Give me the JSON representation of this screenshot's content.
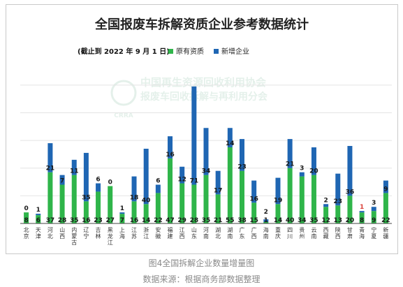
{
  "chart_data": {
    "type": "bar",
    "stacked": true,
    "title": "全国报废车拆解资质企业参考数据统计",
    "subtitle": "(截止到 2022 年 9 月 1 日)",
    "xlabel": "",
    "ylabel": "",
    "ylim": [
      0,
      110
    ],
    "grid": true,
    "legend_position": "top",
    "categories": [
      "北京",
      "天津",
      "河北",
      "山西",
      "内蒙古",
      "辽宁",
      "吉林",
      "黑龙江",
      "上海",
      "江苏",
      "浙江",
      "安徽",
      "福建",
      "江西",
      "山东",
      "河南",
      "湖北",
      "湖南",
      "广东",
      "广西",
      "海南",
      "重庆",
      "四川",
      "贵州",
      "云南",
      "西藏",
      "陕西",
      "甘肃",
      "青海",
      "宁夏",
      "新疆"
    ],
    "series": [
      {
        "name": "原有资质",
        "color": "#2fb54a",
        "values": [
          8,
          6,
          37,
          28,
          35,
          16,
          23,
          27,
          7,
          16,
          14,
          22,
          47,
          29,
          28,
          35,
          21,
          55,
          38,
          15,
          1,
          14,
          40,
          34,
          35,
          12,
          13,
          20,
          8,
          9,
          22
        ]
      },
      {
        "name": "新增企业",
        "color": "#1f66b3",
        "values": [
          0,
          1,
          21,
          7,
          11,
          35,
          6,
          0,
          1,
          18,
          40,
          6,
          16,
          12,
          71,
          34,
          17,
          14,
          23,
          16,
          2,
          19,
          21,
          3,
          20,
          2,
          23,
          36,
          1,
          3,
          9
        ]
      }
    ],
    "colors": {
      "axis": "#444444",
      "grid": "#e4e4e4",
      "title": "#222222",
      "label": "#1a1a1a",
      "small_added": "#d9413a"
    }
  },
  "watermark": {
    "line1": "中国再生资源回收利用协会",
    "line2": "报废车回收拆解与再利用分会",
    "logo": "CRRA"
  },
  "caption": "图4全国拆解企业数量增量图",
  "source": "数据来源：根据商务部数据整理"
}
